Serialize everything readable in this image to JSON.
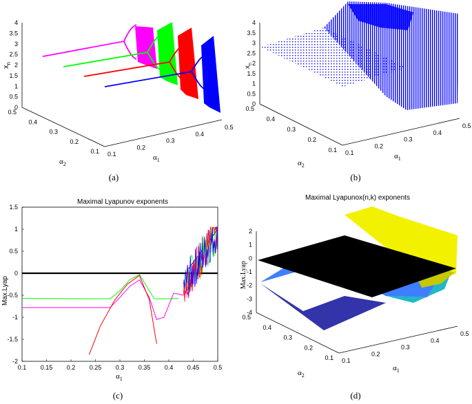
{
  "chart_data": [
    {
      "panel": "(a)",
      "type": "scatter",
      "title": "",
      "xlabel": "α1",
      "ylabel": "α2",
      "zlabel": "x_n",
      "x_ticks": [
        "0.1",
        "0.2",
        "0.3",
        "0.4",
        "0.5"
      ],
      "y_ticks": [
        "0.1",
        "0.2",
        "0.3",
        "0.4",
        "0.5"
      ],
      "z_ticks": [
        "0",
        "0.5",
        "1",
        "1.5",
        "2",
        "2.5",
        "3",
        "3.5",
        "4"
      ],
      "xlim": [
        0.1,
        0.5
      ],
      "ylim": [
        0.1,
        0.5
      ],
      "zlim": [
        0,
        4
      ],
      "series_colors": [
        "#ff00ff",
        "#00ff00",
        "#ff0000",
        "#0000ff"
      ],
      "series": [
        {
          "alpha2": 0.45,
          "steady_state_at_alpha1_0.1": 2.4
        },
        {
          "alpha2": 0.35,
          "steady_state_at_alpha1_0.1": 2.0
        },
        {
          "alpha2": 0.25,
          "steady_state_at_alpha1_0.1": 1.8
        },
        {
          "alpha2": 0.15,
          "steady_state_at_alpha1_0.1": 1.6
        }
      ]
    },
    {
      "panel": "(b)",
      "type": "scatter",
      "title": "",
      "xlabel": "α1",
      "ylabel": "α2",
      "zlabel": "x_n",
      "x_ticks": [
        "0.1",
        "0.2",
        "0.3",
        "0.4",
        "0.5"
      ],
      "y_ticks": [
        "0.1",
        "0.2",
        "0.3",
        "0.4",
        "0.5"
      ],
      "z_ticks": [
        "0",
        "0.5",
        "1",
        "1.5",
        "2",
        "2.5",
        "3",
        "3.5",
        "4"
      ],
      "xlim": [
        0.1,
        0.5
      ],
      "ylim": [
        0.1,
        0.5
      ],
      "zlim": [
        0,
        4
      ],
      "color": "#0000ff"
    },
    {
      "panel": "(c)",
      "type": "line",
      "title": "Maximal Lyapunov exponents",
      "xlabel": "α1",
      "ylabel": "Max.Lyap",
      "x_ticks": [
        "0.1",
        "0.15",
        "0.2",
        "0.25",
        "0.3",
        "0.35",
        "0.4",
        "0.45",
        "0.5"
      ],
      "y_ticks": [
        "-2",
        "-1.5",
        "-1",
        "-0.5",
        "0",
        "0.5",
        "1",
        "1.5"
      ],
      "xlim": [
        0.1,
        0.5
      ],
      "ylim": [
        -2,
        1.5
      ],
      "grid": false,
      "series": [
        {
          "color": "#00ff00",
          "x": [
            0.1,
            0.28,
            0.3,
            0.32,
            0.34,
            0.355,
            0.37,
            0.4,
            0.42
          ],
          "y": [
            -0.57,
            -0.58,
            -0.4,
            -0.15,
            -0.03,
            -0.3,
            -0.58,
            -0.58,
            -0.57
          ]
        },
        {
          "color": "#ff00ff",
          "x": [
            0.1,
            0.28,
            0.3,
            0.32,
            0.34,
            0.36,
            0.375,
            0.39,
            0.41,
            0.43
          ],
          "y": [
            -0.78,
            -0.78,
            -0.55,
            -0.3,
            -0.15,
            -0.55,
            -1.05,
            -1.0,
            -0.45,
            -0.5
          ]
        },
        {
          "color": "#ff0000",
          "x": [
            0.237,
            0.26,
            0.29,
            0.315,
            0.34,
            0.36,
            0.375
          ],
          "y": [
            -1.85,
            -1.2,
            -0.6,
            -0.25,
            -0.05,
            -0.6,
            -1.6
          ]
        },
        {
          "color": "#0000ff",
          "x": [
            0.44,
            0.46,
            0.48,
            0.5
          ],
          "y": [
            0.1,
            0.4,
            0.7,
            1.0
          ]
        },
        {
          "color": "#000000",
          "x": [
            0.1,
            0.5
          ],
          "y": [
            0,
            0
          ]
        }
      ]
    },
    {
      "panel": "(d)",
      "type": "area",
      "title": "Maximal Lyapunox(n,k) exponents",
      "xlabel": "α1",
      "ylabel": "α2",
      "zlabel": "Max.Lyap",
      "x_ticks": [
        "0.1",
        "0.2",
        "0.3",
        "0.4",
        "0.5"
      ],
      "y_ticks": [
        "0.1",
        "0.2",
        "0.3",
        "0.4",
        "0.5"
      ],
      "z_ticks": [
        "-4",
        "-3",
        "-2",
        "-1",
        "0",
        "1",
        "2"
      ],
      "xlim": [
        0.1,
        0.5
      ],
      "ylim": [
        0.1,
        0.5
      ],
      "zlim": [
        -4,
        2
      ]
    }
  ],
  "captions": [
    "(a)",
    "(b)",
    "(c)",
    "(d)"
  ],
  "labels": {
    "alpha1": "α",
    "alpha2": "α",
    "sub1": "1",
    "sub2": "2",
    "xn": "x",
    "sub_n": "n",
    "maxlyap": "Max.Lyap"
  }
}
